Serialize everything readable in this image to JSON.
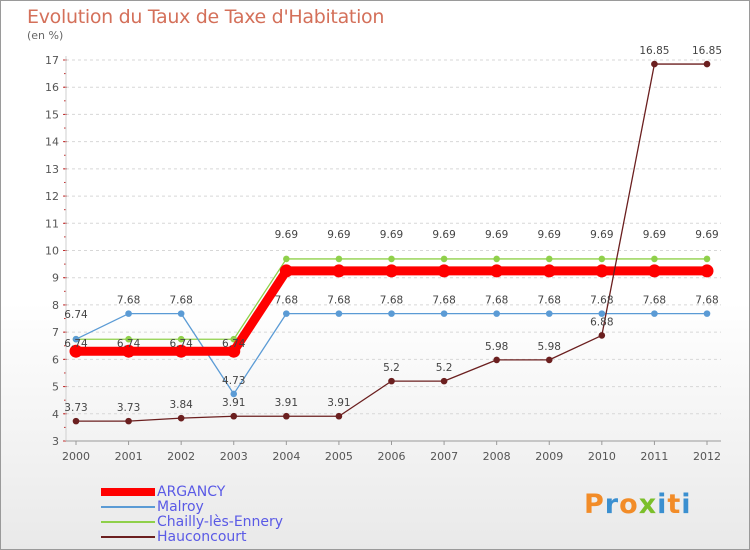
{
  "title": "Evolution du Taux de Taxe d'Habitation",
  "subtitle": "(en %)",
  "logo": {
    "text": "Proxiti",
    "colors": [
      "#f28c28",
      "#3a8fd0",
      "#f28c28",
      "#7bbf2a",
      "#3a8fd0",
      "#f28c28",
      "#3a8fd0"
    ]
  },
  "chart_data": {
    "type": "line",
    "title": "Evolution du Taux de Taxe d'Habitation",
    "ylabel": "(en %)",
    "xlabel": "",
    "x": [
      "2000",
      "2001",
      "2002",
      "2003",
      "2004",
      "2005",
      "2006",
      "2007",
      "2008",
      "2009",
      "2010",
      "2011",
      "2012"
    ],
    "ylim": [
      3,
      17
    ],
    "yticks": [
      3,
      4,
      5,
      6,
      7,
      8,
      9,
      10,
      11,
      12,
      13,
      14,
      15,
      16,
      17
    ],
    "grid": "horizontal dashed",
    "legend_position": "bottom-left",
    "series": [
      {
        "name": "ARGANCY",
        "color": "#ff0000",
        "values": [
          6.3,
          6.3,
          6.3,
          6.3,
          9.25,
          9.25,
          9.25,
          9.25,
          9.25,
          9.25,
          9.25,
          9.25,
          9.25
        ],
        "labels": [
          "",
          "",
          "",
          "",
          "",
          "",
          "",
          "",
          "",
          "",
          "",
          "",
          ""
        ]
      },
      {
        "name": "Malroy",
        "color": "#5b9bd5",
        "values": [
          6.74,
          7.68,
          7.68,
          4.73,
          7.68,
          7.68,
          7.68,
          7.68,
          7.68,
          7.68,
          7.68,
          7.68,
          7.68
        ],
        "labels": [
          "6.74",
          "7.68",
          "7.68",
          "4.73",
          "7.68",
          "7.68",
          "7.68",
          "7.68",
          "7.68",
          "7.68",
          "7.68",
          "7.68",
          "7.68"
        ]
      },
      {
        "name": "Chailly-lès-Ennery",
        "color": "#8fd04a",
        "values": [
          6.74,
          6.74,
          6.74,
          6.74,
          9.69,
          9.69,
          9.69,
          9.69,
          9.69,
          9.69,
          9.69,
          9.69,
          9.69
        ],
        "labels": [
          "6.74",
          "6.74",
          "6.74",
          "6.74",
          "9.69",
          "9.69",
          "9.69",
          "9.69",
          "9.69",
          "9.69",
          "9.69",
          "9.69",
          "9.69"
        ]
      },
      {
        "name": "Hauconcourt",
        "color": "#6b1f1f",
        "values": [
          3.73,
          3.73,
          3.84,
          3.91,
          3.91,
          3.91,
          5.2,
          5.2,
          5.98,
          5.98,
          6.88,
          16.85,
          16.85
        ],
        "labels": [
          "3.73",
          "3.73",
          "3.84",
          "3.91",
          "3.91",
          "3.91",
          "5.2",
          "5.2",
          "5.98",
          "5.98",
          "6.88",
          "16.85",
          "16.85"
        ]
      }
    ]
  }
}
